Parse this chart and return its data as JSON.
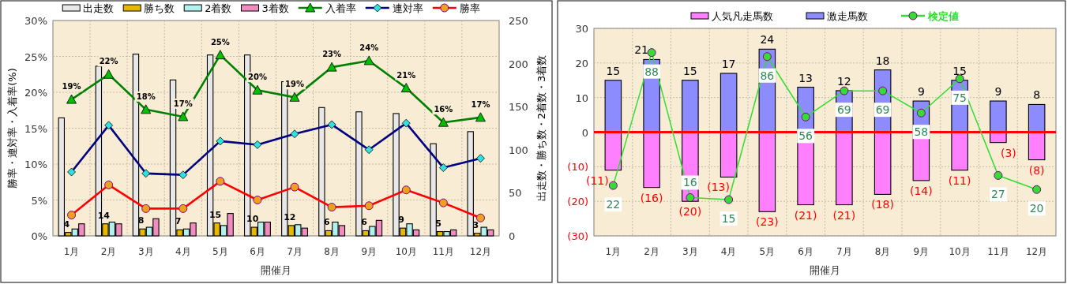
{
  "chart_data": [
    {
      "type": "bar",
      "categories": [
        "1月",
        "2月",
        "3月",
        "4月",
        "5月",
        "6月",
        "7月",
        "8月",
        "9月",
        "10月",
        "11月",
        "12月"
      ],
      "xlabel": "開催月",
      "ylabel": "勝率・連対率・入着率(%)",
      "y2label": "出走数・勝ち数・2着数・3着数",
      "ylim": [
        0,
        30
      ],
      "yticks": [
        {
          "value": 0,
          "label": "0%"
        },
        {
          "value": 5,
          "label": "5%"
        },
        {
          "value": 10,
          "label": "10%"
        },
        {
          "value": 15,
          "label": "15%"
        },
        {
          "value": 20,
          "label": "20%"
        },
        {
          "value": 25,
          "label": "25%"
        },
        {
          "value": 30,
          "label": "30%"
        }
      ],
      "y2lim": [
        0,
        250
      ],
      "y2ticks": [
        0,
        50,
        100,
        150,
        200,
        250
      ],
      "grid": true,
      "legend": "top",
      "series": [
        {
          "name": "出走数",
          "axis": "y2",
          "color": "#e8e8e8",
          "values": [
            137,
            197,
            211,
            181,
            210,
            210,
            179,
            149,
            144,
            142,
            107,
            121
          ]
        },
        {
          "name": "勝ち数",
          "axis": "y2",
          "color": "#e6b800",
          "values": [
            4,
            14,
            8,
            7,
            15,
            10,
            12,
            6,
            6,
            9,
            5,
            3
          ],
          "value_labels": [
            "4",
            "14",
            "8",
            "7",
            "15",
            "10",
            "12",
            "6",
            "6",
            "9",
            "5",
            "3"
          ]
        },
        {
          "name": "2着数",
          "axis": "y2",
          "color": "#b3f0f0",
          "values": [
            8,
            16,
            10,
            8,
            12,
            16,
            13,
            16,
            11,
            14,
            5,
            10
          ]
        },
        {
          "name": "3着数",
          "axis": "y2",
          "color": "#f08cc0",
          "values": [
            14,
            14,
            20,
            15,
            26,
            16,
            9,
            12,
            18,
            7,
            7,
            7
          ]
        },
        {
          "name": "入着率",
          "type": "line",
          "color": "#008000",
          "marker": "triangle",
          "values": [
            19,
            22.5,
            17.6,
            16.6,
            25.2,
            20.3,
            19.3,
            23.5,
            24.4,
            20.6,
            15.8,
            16.5
          ],
          "value_labels": [
            "19%",
            "22%",
            "18%",
            "17%",
            "25%",
            "20%",
            "19%",
            "23%",
            "24%",
            "21%",
            "16%",
            "17%"
          ]
        },
        {
          "name": "連対率",
          "type": "line",
          "color": "#000080",
          "marker": "diamond",
          "values": [
            8.9,
            15.4,
            8.7,
            8.5,
            13.2,
            12.7,
            14.2,
            15.5,
            12.0,
            15.7,
            9.5,
            10.8
          ]
        },
        {
          "name": "勝率",
          "type": "line",
          "color": "#ff0000",
          "marker": "circle",
          "values": [
            2.9,
            7.1,
            3.8,
            3.8,
            7.6,
            5.0,
            6.8,
            4.0,
            4.2,
            6.4,
            4.6,
            2.5
          ]
        }
      ]
    },
    {
      "type": "bar",
      "stacked": true,
      "categories": [
        "1月",
        "2月",
        "3月",
        "4月",
        "5月",
        "6月",
        "7月",
        "8月",
        "9月",
        "10月",
        "11月",
        "12月"
      ],
      "xlabel": "開催月",
      "ylim": [
        -30,
        30
      ],
      "yticks": [
        {
          "value": -30,
          "label": "(30)"
        },
        {
          "value": -20,
          "label": "(20)"
        },
        {
          "value": -10,
          "label": "(10)"
        },
        0,
        10,
        20,
        30
      ],
      "y2lim": [
        -3,
        100
      ],
      "grid": true,
      "legend": "top",
      "ref_lines": [
        {
          "axis": "y",
          "value": 0,
          "color": "#ff0000"
        }
      ],
      "series": [
        {
          "name": "人気凡走馬数",
          "color": "#ff80ff",
          "values": [
            -11,
            -16,
            -20,
            -13,
            -23,
            -21,
            -21,
            -18,
            -14,
            -11,
            -3,
            -8
          ],
          "value_labels": [
            "(11)",
            "(16)",
            "(20)",
            "(13)",
            "(23)",
            "(21)",
            "(21)",
            "(18)",
            "(14)",
            "(11)",
            "(3)",
            "(8)"
          ]
        },
        {
          "name": "激走馬数",
          "color": "#8c8cff",
          "values": [
            15,
            21,
            15,
            17,
            24,
            13,
            12,
            18,
            9,
            15,
            9,
            8
          ],
          "value_labels": [
            "15",
            "21",
            "15",
            "17",
            "24",
            "13",
            "12",
            "18",
            "9",
            "15",
            "9",
            "8"
          ]
        },
        {
          "name": "検定値",
          "type": "line",
          "axis": "y2",
          "color": "#33dd33",
          "marker": "circle",
          "values": [
            22,
            88,
            16,
            15,
            86,
            56,
            69,
            69,
            58,
            75,
            27,
            20
          ],
          "value_labels": [
            "22",
            "88",
            "16",
            "15",
            "86",
            "56",
            "69",
            "69",
            "58",
            "75",
            "27",
            "20"
          ]
        }
      ]
    }
  ]
}
